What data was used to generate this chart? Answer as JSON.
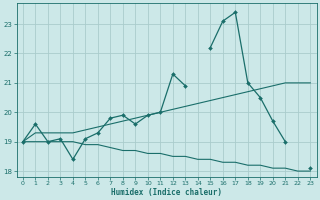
{
  "xlabel": "Humidex (Indice chaleur)",
  "bg_color": "#cce8e8",
  "grid_color": "#aacccc",
  "line_color": "#1a6e6a",
  "x_values": [
    0,
    1,
    2,
    3,
    4,
    5,
    6,
    7,
    8,
    9,
    10,
    11,
    12,
    13,
    14,
    15,
    16,
    17,
    18,
    19,
    20,
    21,
    22,
    23
  ],
  "main_line": [
    19.0,
    19.6,
    19.0,
    19.1,
    18.4,
    19.1,
    19.3,
    19.8,
    19.9,
    19.6,
    19.9,
    20.0,
    21.3,
    20.9,
    null,
    22.2,
    23.1,
    23.4,
    21.0,
    20.5,
    19.7,
    19.0,
    null,
    18.1
  ],
  "upper_line": [
    19.0,
    19.3,
    19.3,
    19.3,
    19.3,
    19.4,
    19.5,
    19.6,
    19.7,
    19.8,
    19.9,
    20.0,
    20.1,
    20.2,
    20.3,
    20.4,
    20.5,
    20.6,
    20.7,
    20.8,
    20.9,
    21.0,
    21.0,
    21.0
  ],
  "lower_line": [
    19.0,
    19.0,
    19.0,
    19.0,
    19.0,
    18.9,
    18.9,
    18.8,
    18.7,
    18.7,
    18.6,
    18.6,
    18.5,
    18.5,
    18.4,
    18.4,
    18.3,
    18.3,
    18.2,
    18.2,
    18.1,
    18.1,
    18.0,
    18.0
  ],
  "ylim": [
    17.8,
    23.7
  ],
  "xlim": [
    -0.5,
    23.5
  ],
  "yticks": [
    18,
    19,
    20,
    21,
    22,
    23
  ],
  "xticks": [
    0,
    1,
    2,
    3,
    4,
    5,
    6,
    7,
    8,
    9,
    10,
    11,
    12,
    13,
    14,
    15,
    16,
    17,
    18,
    19,
    20,
    21,
    22,
    23
  ]
}
